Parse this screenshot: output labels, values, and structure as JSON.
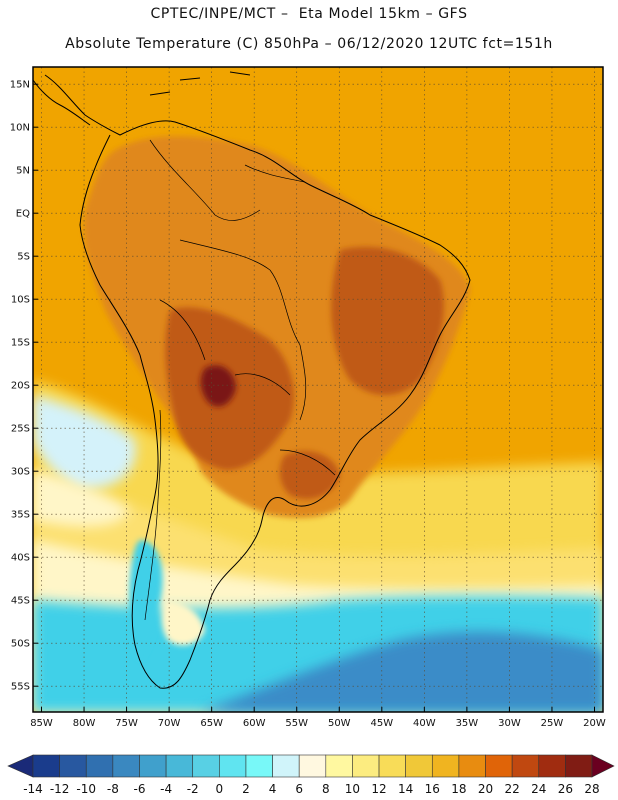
{
  "title": {
    "line1": "CPTEC/INPE/MCT –  Eta Model 15km – GFS",
    "line2": "Absolute Temperature (C) 850hPa – 06/12/2020 12UTC fct=151h"
  },
  "map": {
    "region": "South America",
    "lon_range": [
      -86,
      -19
    ],
    "lat_range": [
      -58,
      17
    ],
    "lon_ticks": [
      "85W",
      "80W",
      "75W",
      "70W",
      "65W",
      "60W",
      "55W",
      "50W",
      "45W",
      "40W",
      "35W",
      "30W",
      "25W",
      "20W"
    ],
    "lon_tick_values": [
      -85,
      -80,
      -75,
      -70,
      -65,
      -60,
      -55,
      -50,
      -45,
      -40,
      -35,
      -30,
      -25,
      -20
    ],
    "lat_ticks": [
      "15N",
      "10N",
      "5N",
      "EQ",
      "5S",
      "10S",
      "15S",
      "20S",
      "25S",
      "30S",
      "35S",
      "40S",
      "45S",
      "50S",
      "55S"
    ],
    "lat_tick_values": [
      15,
      10,
      5,
      0,
      -5,
      -10,
      -15,
      -20,
      -25,
      -30,
      -35,
      -40,
      -45,
      -50,
      -55
    ],
    "gridlines": "dotted",
    "colors": {
      "background_field": "#f0a400",
      "land_warm": "#e0881a",
      "land_hot": "#c05a14",
      "land_hottest": "#7a1818",
      "south_yellow": "#f8d850",
      "south_pale": "#fff6c8",
      "cold_cyan": "#40d0e8",
      "cold_blue": "#3a8cc8",
      "coastline": "#000000"
    }
  },
  "colorbar": {
    "labels": [
      "-14",
      "-12",
      "-10",
      "-8",
      "-6",
      "-4",
      "-2",
      "0",
      "2",
      "4",
      "6",
      "8",
      "10",
      "12",
      "14",
      "16",
      "18",
      "20",
      "22",
      "24",
      "26",
      "28"
    ],
    "colors": [
      "#1a3c8c",
      "#2858a0",
      "#3070b0",
      "#3a88c0",
      "#40a0cc",
      "#48b8d8",
      "#58d0e4",
      "#60e4f0",
      "#78f8f8",
      "#d0f4fa",
      "#fff8e0",
      "#fff8a0",
      "#fcec80",
      "#f8dc58",
      "#f0c838",
      "#f0b420",
      "#e88c10",
      "#e06408",
      "#c04810",
      "#a02c10",
      "#801c14"
    ],
    "under_color": "#1a2a78",
    "over_color": "#6a0020"
  }
}
